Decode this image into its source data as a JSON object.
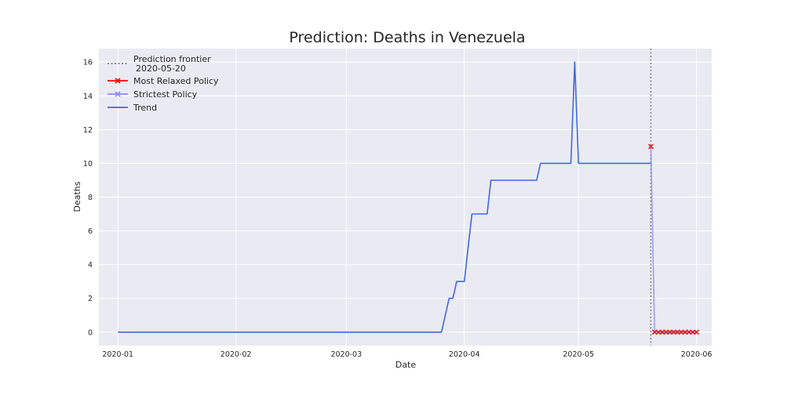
{
  "chart_data": {
    "type": "line",
    "title": "Prediction: Deaths in Venezuela",
    "xlabel": "Date",
    "ylabel": "Deaths",
    "xlim": [
      "2019-12-27",
      "2020-06-05"
    ],
    "ylim": [
      -0.8,
      16.8
    ],
    "x_ticks": [
      {
        "date": "2020-01-01",
        "label": "2020-01"
      },
      {
        "date": "2020-02-01",
        "label": "2020-02"
      },
      {
        "date": "2020-03-01",
        "label": "2020-03"
      },
      {
        "date": "2020-04-01",
        "label": "2020-04"
      },
      {
        "date": "2020-05-01",
        "label": "2020-05"
      },
      {
        "date": "2020-06-01",
        "label": "2020-06"
      }
    ],
    "y_ticks": [
      0,
      2,
      4,
      6,
      8,
      10,
      12,
      14,
      16
    ],
    "grid": true,
    "legend_position": "top-left",
    "frontier": {
      "name": "Prediction frontier",
      "date_label": "2020-05-20",
      "date": "2020-05-20",
      "color": "#808080"
    },
    "series": [
      {
        "name": "Trend",
        "color": "#4169e1",
        "marker": "none",
        "points": [
          [
            "2020-01-01",
            0
          ],
          [
            "2020-03-26",
            0
          ],
          [
            "2020-03-28",
            2
          ],
          [
            "2020-03-29",
            2
          ],
          [
            "2020-03-30",
            3
          ],
          [
            "2020-04-01",
            3
          ],
          [
            "2020-04-03",
            7
          ],
          [
            "2020-04-07",
            7
          ],
          [
            "2020-04-08",
            9
          ],
          [
            "2020-04-20",
            9
          ],
          [
            "2020-04-21",
            10
          ],
          [
            "2020-04-29",
            10
          ],
          [
            "2020-04-30",
            16
          ],
          [
            "2020-05-01",
            10
          ],
          [
            "2020-05-20",
            10
          ]
        ]
      },
      {
        "name": "Most Relaxed Policy",
        "color": "#ff0000",
        "marker": "x",
        "points": [
          [
            "2020-05-20",
            11
          ],
          [
            "2020-05-21",
            0
          ],
          [
            "2020-05-22",
            0
          ],
          [
            "2020-05-23",
            0
          ],
          [
            "2020-05-24",
            0
          ],
          [
            "2020-05-25",
            0
          ],
          [
            "2020-05-26",
            0
          ],
          [
            "2020-05-27",
            0
          ],
          [
            "2020-05-28",
            0
          ],
          [
            "2020-05-29",
            0
          ],
          [
            "2020-05-30",
            0
          ],
          [
            "2020-05-31",
            0
          ],
          [
            "2020-06-01",
            0
          ]
        ]
      },
      {
        "name": "Strictest Policy",
        "color": "#8a8aff",
        "marker": "x",
        "points": [
          [
            "2020-05-20",
            11
          ],
          [
            "2020-05-21",
            0
          ],
          [
            "2020-05-22",
            0
          ],
          [
            "2020-05-23",
            0
          ],
          [
            "2020-05-24",
            0
          ],
          [
            "2020-05-25",
            0
          ],
          [
            "2020-05-26",
            0
          ],
          [
            "2020-05-27",
            0
          ],
          [
            "2020-05-28",
            0
          ],
          [
            "2020-05-29",
            0
          ],
          [
            "2020-05-30",
            0
          ],
          [
            "2020-05-31",
            0
          ],
          [
            "2020-06-01",
            0
          ]
        ]
      }
    ],
    "colors": {
      "background": "#eaeaf2",
      "grid": "#ffffff",
      "text": "#262626"
    }
  }
}
